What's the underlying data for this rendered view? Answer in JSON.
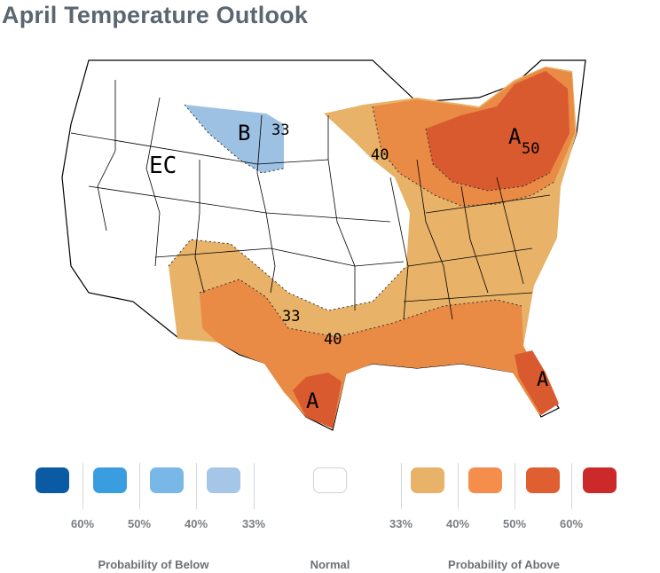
{
  "title": "April Temperature Outlook",
  "map": {
    "labels": {
      "ec": "EC",
      "below_letter": "B",
      "below_33": "33",
      "above_40_ne": "40",
      "above_33_sw": "33",
      "above_40_south": "40",
      "above_letter_ne": "A",
      "above_50_ne": "50",
      "above_letter_tx": "A",
      "above_letter_fl": "A"
    },
    "colors": {
      "above_33": "#e8b268",
      "above_40": "#e98a45",
      "above_50": "#d95a2f",
      "above_60": "#c9302c",
      "below_33": "#9dc1e3"
    }
  },
  "legend": {
    "below": [
      {
        "label": "60%",
        "color": "#0b5aa4"
      },
      {
        "label": "50%",
        "color": "#3a9de0"
      },
      {
        "label": "40%",
        "color": "#79b7e6"
      },
      {
        "label": "33%",
        "color": "#a5c6e6"
      }
    ],
    "normal": {
      "color": "#ffffff"
    },
    "above": [
      {
        "label": "33%",
        "color": "#e8b268"
      },
      {
        "label": "40%",
        "color": "#f58d4c"
      },
      {
        "label": "50%",
        "color": "#df5e32"
      },
      {
        "label": "60%",
        "color": "#cc2a2a"
      }
    ],
    "labels": {
      "below": "Probability of Below",
      "normal": "Normal",
      "above": "Probability of Above"
    }
  }
}
